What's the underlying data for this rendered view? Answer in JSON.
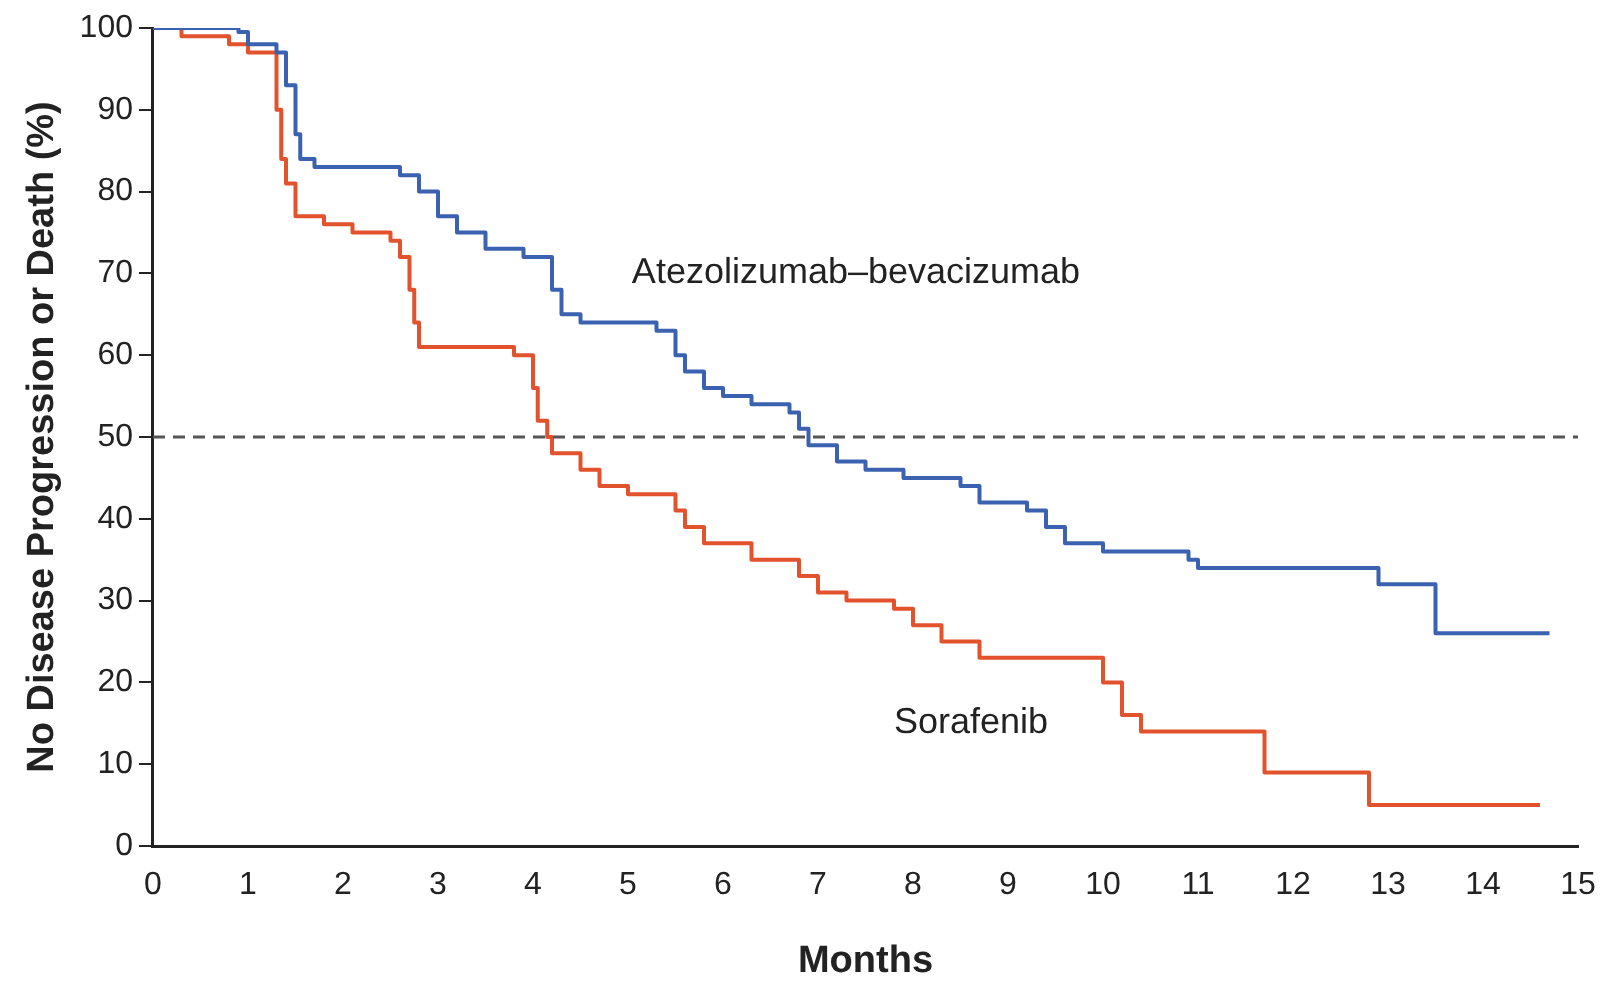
{
  "chart_data": {
    "type": "step",
    "xlabel": "Months",
    "ylabel": "No Disease Progression or Death (%)",
    "xlim": [
      0,
      15
    ],
    "xticks": [
      0,
      1,
      2,
      3,
      4,
      5,
      6,
      7,
      8,
      9,
      10,
      11,
      12,
      13,
      14,
      15
    ],
    "ylim": [
      0,
      100
    ],
    "yticks": [
      0,
      10,
      20,
      30,
      40,
      50,
      60,
      70,
      80,
      90,
      100
    ],
    "grid": false,
    "legend": false,
    "marker": "none",
    "line_style": "solid",
    "ref_lines": [
      {
        "axis": "y",
        "value": 50,
        "line_style": "dashed",
        "color": "#555555"
      }
    ],
    "series": [
      {
        "name": "Atezolizumab–bevacizumab",
        "color": "#3b62b0",
        "x": [
          0,
          0.9,
          1.0,
          1.3,
          1.4,
          1.5,
          1.55,
          1.7,
          2.6,
          2.8,
          3.0,
          3.2,
          3.5,
          3.9,
          4.2,
          4.3,
          4.5,
          5.3,
          5.5,
          5.6,
          5.8,
          6.0,
          6.3,
          6.7,
          6.8,
          6.9,
          7.2,
          7.5,
          7.9,
          8.5,
          8.7,
          9.2,
          9.4,
          9.6,
          10.0,
          10.9,
          11.0,
          12.9,
          13.5,
          14.7
        ],
        "values": [
          100,
          99.5,
          98,
          97,
          93,
          87,
          84,
          83,
          82,
          80,
          77,
          75,
          73,
          72,
          68,
          65,
          64,
          63,
          60,
          58,
          56,
          55,
          54,
          53,
          51,
          49,
          47,
          46,
          45,
          44,
          42,
          41,
          39,
          37,
          36,
          35,
          34,
          32,
          26,
          26
        ]
      },
      {
        "name": "Sorafenib",
        "color": "#e2522c",
        "x": [
          0,
          0.3,
          0.8,
          1.0,
          1.3,
          1.35,
          1.4,
          1.5,
          1.8,
          2.1,
          2.5,
          2.6,
          2.7,
          2.75,
          2.8,
          3.8,
          4.0,
          4.05,
          4.15,
          4.2,
          4.5,
          4.7,
          5.0,
          5.5,
          5.6,
          5.8,
          6.3,
          6.8,
          7.0,
          7.3,
          7.8,
          8.0,
          8.3,
          8.7,
          10.0,
          10.2,
          10.4,
          11.7,
          12.8,
          14.6
        ],
        "values": [
          100,
          99,
          98,
          97,
          90,
          84,
          81,
          77,
          76,
          75,
          74,
          72,
          68,
          64,
          61,
          60,
          56,
          52,
          50,
          48,
          46,
          44,
          43,
          41,
          39,
          37,
          35,
          33,
          31,
          30,
          29,
          27,
          25,
          23,
          20,
          16,
          14,
          9,
          5,
          5
        ]
      }
    ]
  }
}
